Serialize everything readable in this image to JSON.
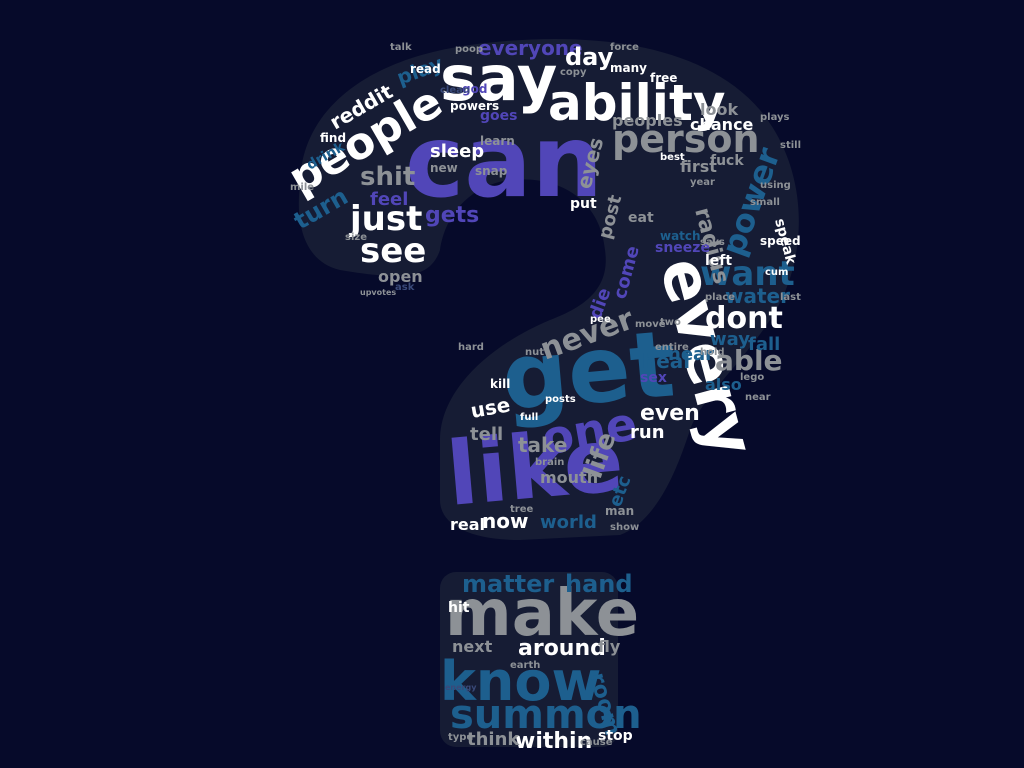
{
  "scene": {
    "background": "#060a2a",
    "shape_fill": "#161c34",
    "shape": "question-mark",
    "palette": [
      "#ffffff",
      "#5146b8",
      "#1d5f8e",
      "#8d9196",
      "#3a4a7a"
    ]
  },
  "words": [
    {
      "text": "can",
      "color": "#5146b8"
    },
    {
      "text": "say",
      "color": "#ffffff"
    },
    {
      "text": "ability",
      "color": "#ffffff"
    },
    {
      "text": "people",
      "color": "#ffffff"
    },
    {
      "text": "every",
      "color": "#ffffff"
    },
    {
      "text": "get",
      "color": "#1d5f8e"
    },
    {
      "text": "like",
      "color": "#5146b8"
    },
    {
      "text": "one",
      "color": "#5146b8"
    },
    {
      "text": "make",
      "color": "#8d9196"
    },
    {
      "text": "know",
      "color": "#1d5f8e"
    },
    {
      "text": "summon",
      "color": "#1d5f8e"
    },
    {
      "text": "person",
      "color": "#8d9196"
    },
    {
      "text": "just",
      "color": "#ffffff"
    },
    {
      "text": "see",
      "color": "#ffffff"
    },
    {
      "text": "power",
      "color": "#1d5f8e"
    },
    {
      "text": "want",
      "color": "#1d5f8e"
    },
    {
      "text": "dont",
      "color": "#ffffff"
    },
    {
      "text": "never",
      "color": "#8d9196"
    },
    {
      "text": "able",
      "color": "#8d9196"
    },
    {
      "text": "life",
      "color": "#8d9196"
    },
    {
      "text": "matter",
      "color": "#1d5f8e"
    },
    {
      "text": "hand",
      "color": "#1d5f8e"
    },
    {
      "text": "around",
      "color": "#ffffff"
    },
    {
      "text": "room",
      "color": "#1d5f8e"
    },
    {
      "text": "within",
      "color": "#ffffff"
    },
    {
      "text": "think",
      "color": "#8d9196"
    },
    {
      "text": "shit",
      "color": "#8d9196"
    },
    {
      "text": "turn",
      "color": "#1d5f8e"
    },
    {
      "text": "gets",
      "color": "#5146b8"
    },
    {
      "text": "everyone",
      "color": "#5146b8"
    },
    {
      "text": "day",
      "color": "#ffffff"
    },
    {
      "text": "play",
      "color": "#1d5f8e"
    },
    {
      "text": "reddit",
      "color": "#ffffff"
    },
    {
      "text": "sleep",
      "color": "#ffffff"
    },
    {
      "text": "eyes",
      "color": "#8d9196"
    },
    {
      "text": "radius",
      "color": "#8d9196"
    },
    {
      "text": "water",
      "color": "#1d5f8e"
    },
    {
      "text": "use",
      "color": "#ffffff"
    },
    {
      "text": "tell",
      "color": "#8d9196"
    },
    {
      "text": "take",
      "color": "#8d9196"
    },
    {
      "text": "even",
      "color": "#ffffff"
    },
    {
      "text": "run",
      "color": "#ffffff"
    },
    {
      "text": "heal",
      "color": "#1d5f8e"
    },
    {
      "text": "fall",
      "color": "#1d5f8e"
    },
    {
      "text": "also",
      "color": "#1d5f8e"
    },
    {
      "text": "real",
      "color": "#ffffff"
    },
    {
      "text": "now",
      "color": "#ffffff"
    },
    {
      "text": "world",
      "color": "#1d5f8e"
    },
    {
      "text": "etc",
      "color": "#1d5f8e"
    },
    {
      "text": "open",
      "color": "#8d9196"
    },
    {
      "text": "feel",
      "color": "#5146b8"
    },
    {
      "text": "die",
      "color": "#5146b8"
    },
    {
      "text": "left",
      "color": "#ffffff"
    },
    {
      "text": "look",
      "color": "#8d9196"
    },
    {
      "text": "chance",
      "color": "#ffffff"
    },
    {
      "text": "first",
      "color": "#8d9196"
    },
    {
      "text": "peoples",
      "color": "#8d9196"
    },
    {
      "text": "way",
      "color": "#1d5f8e"
    },
    {
      "text": "fly",
      "color": "#8d9196"
    },
    {
      "text": "next",
      "color": "#8d9196"
    },
    {
      "text": "hit",
      "color": "#ffffff"
    },
    {
      "text": "stop",
      "color": "#ffffff"
    },
    {
      "text": "many",
      "color": "#ffffff"
    },
    {
      "text": "free",
      "color": "#ffffff"
    },
    {
      "text": "read",
      "color": "#ffffff"
    },
    {
      "text": "goes",
      "color": "#5146b8"
    },
    {
      "text": "sneeze",
      "color": "#5146b8"
    },
    {
      "text": "speak",
      "color": "#ffffff"
    },
    {
      "text": "speed",
      "color": "#ffffff"
    },
    {
      "text": "eat",
      "color": "#8d9196"
    },
    {
      "text": "post",
      "color": "#8d9196"
    },
    {
      "text": "come",
      "color": "#5146b8"
    },
    {
      "text": "mouth",
      "color": "#8d9196"
    },
    {
      "text": "sex",
      "color": "#5146b8"
    },
    {
      "text": "hear",
      "color": "#1d5f8e"
    },
    {
      "text": "powers",
      "color": "#ffffff"
    },
    {
      "text": "put",
      "color": "#ffffff"
    },
    {
      "text": "fuck",
      "color": "#8d9196"
    },
    {
      "text": "drink",
      "color": "#1d5f8e"
    },
    {
      "text": "find",
      "color": "#ffffff"
    },
    {
      "text": "god",
      "color": "#5146b8"
    },
    {
      "text": "clean",
      "color": "#3a4a7a"
    },
    {
      "text": "new",
      "color": "#8d9196"
    },
    {
      "text": "kill",
      "color": "#ffffff"
    },
    {
      "text": "brain",
      "color": "#8d9196"
    },
    {
      "text": "two",
      "color": "#8d9196"
    },
    {
      "text": "pee",
      "color": "#ffffff"
    },
    {
      "text": "move",
      "color": "#8d9196"
    },
    {
      "text": "best",
      "color": "#ffffff"
    },
    {
      "text": "using",
      "color": "#8d9196"
    },
    {
      "text": "mile",
      "color": "#8d9196"
    },
    {
      "text": "cum",
      "color": "#ffffff"
    },
    {
      "text": "says",
      "color": "#8d9196"
    },
    {
      "text": "still",
      "color": "#8d9196"
    },
    {
      "text": "ask",
      "color": "#3a4a7a"
    },
    {
      "text": "poop",
      "color": "#8d9196"
    },
    {
      "text": "copy",
      "color": "#8d9196"
    },
    {
      "text": "force",
      "color": "#8d9196"
    },
    {
      "text": "last",
      "color": "#8d9196"
    },
    {
      "text": "watch",
      "color": "#1d5f8e"
    },
    {
      "text": "hard",
      "color": "#8d9196"
    },
    {
      "text": "place",
      "color": "#8d9196"
    },
    {
      "text": "lego",
      "color": "#8d9196"
    },
    {
      "text": "near",
      "color": "#8d9196"
    },
    {
      "text": "posts",
      "color": "#ffffff"
    },
    {
      "text": "full",
      "color": "#ffffff"
    },
    {
      "text": "show",
      "color": "#8d9196"
    },
    {
      "text": "man",
      "color": "#8d9196"
    },
    {
      "text": "tree",
      "color": "#8d9196"
    },
    {
      "text": "earth",
      "color": "#8d9196"
    },
    {
      "text": "type",
      "color": "#8d9196"
    },
    {
      "text": "cause",
      "color": "#8d9196"
    },
    {
      "text": "energy",
      "color": "#3a4a7a"
    },
    {
      "text": "hold",
      "color": "#8d9196"
    },
    {
      "text": "entire",
      "color": "#8d9196"
    },
    {
      "text": "year",
      "color": "#8d9196"
    },
    {
      "text": "nut",
      "color": "#8d9196"
    },
    {
      "text": "small",
      "color": "#8d9196"
    },
    {
      "text": "plays",
      "color": "#8d9196"
    },
    {
      "text": "snap",
      "color": "#8d9196"
    },
    {
      "text": "learn",
      "color": "#8d9196"
    },
    {
      "text": "size",
      "color": "#8d9196"
    },
    {
      "text": "upvotes",
      "color": "#8d9196"
    },
    {
      "text": "talk",
      "color": "#8d9196"
    }
  ]
}
